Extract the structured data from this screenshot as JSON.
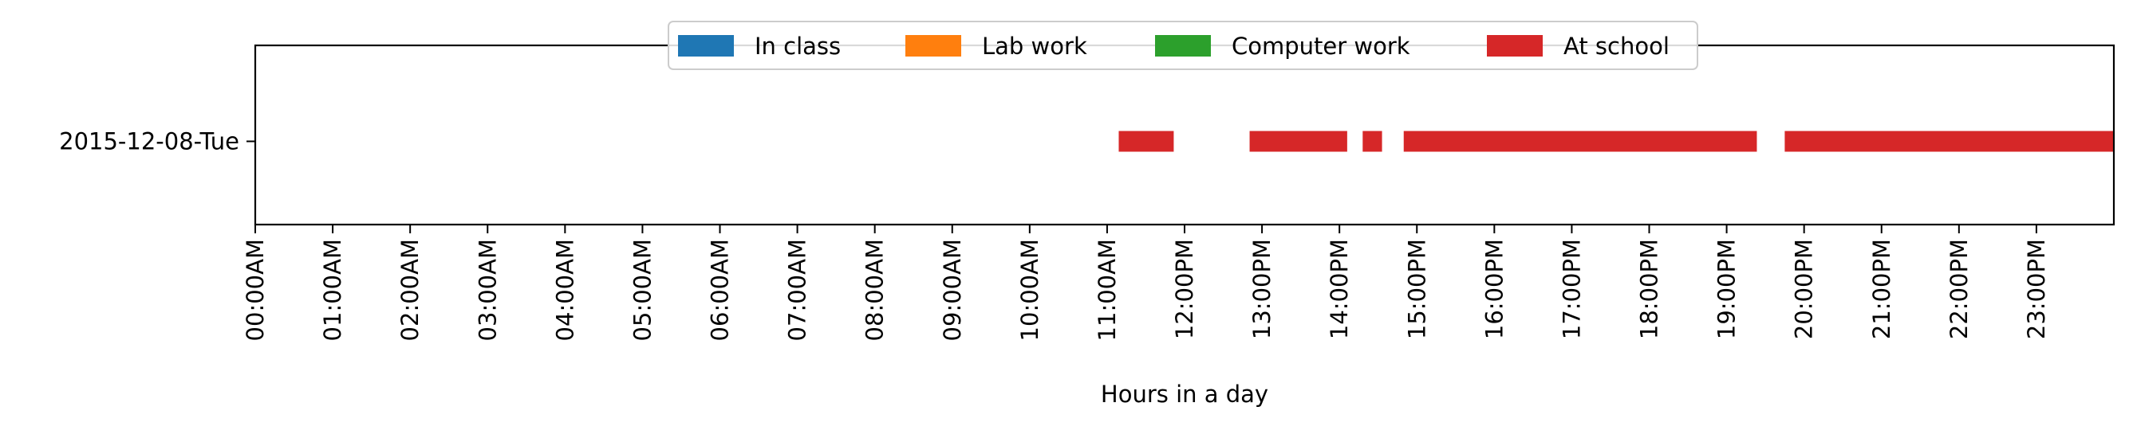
{
  "chart_data": {
    "type": "bar",
    "orientation": "horizontal",
    "xlabel": "Hours in a day",
    "ylabel": "",
    "xlim": [
      0,
      24
    ],
    "categories": [
      "2015-12-08-Tue"
    ],
    "x_tick_labels": [
      "00:00AM",
      "01:00AM",
      "02:00AM",
      "03:00AM",
      "04:00AM",
      "05:00AM",
      "06:00AM",
      "07:00AM",
      "08:00AM",
      "09:00AM",
      "10:00AM",
      "11:00AM",
      "12:00PM",
      "13:00PM",
      "14:00PM",
      "15:00PM",
      "16:00PM",
      "17:00PM",
      "18:00PM",
      "19:00PM",
      "20:00PM",
      "21:00PM",
      "22:00PM",
      "23:00PM"
    ],
    "legend_position": "upper-center",
    "grid": false,
    "series": [
      {
        "name": "In class",
        "color": "#1f77b4",
        "intervals": []
      },
      {
        "name": "Lab work",
        "color": "#ff7f0e",
        "intervals": []
      },
      {
        "name": "Computer work",
        "color": "#2ca02c",
        "intervals": []
      },
      {
        "name": "At school",
        "color": "#d62728",
        "intervals": [
          {
            "category": "2015-12-08-Tue",
            "start": 11.15,
            "end": 11.86
          },
          {
            "category": "2015-12-08-Tue",
            "start": 12.84,
            "end": 14.1
          },
          {
            "category": "2015-12-08-Tue",
            "start": 14.3,
            "end": 14.55
          },
          {
            "category": "2015-12-08-Tue",
            "start": 14.83,
            "end": 19.39
          },
          {
            "category": "2015-12-08-Tue",
            "start": 19.75,
            "end": 24.0
          }
        ]
      }
    ]
  }
}
